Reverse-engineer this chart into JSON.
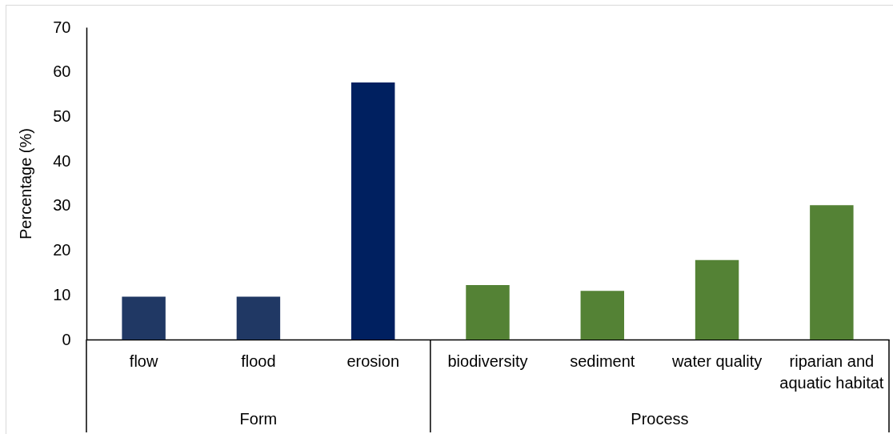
{
  "chart_data": {
    "type": "bar",
    "ylabel": "Percentage (%)",
    "categories": [
      "flow",
      "flood",
      "erosion",
      "biodiversity",
      "sediment",
      "water quality",
      "riparian and aquatic habitat"
    ],
    "series": [
      {
        "colors": [
          "#203864",
          "#203864",
          "#002060",
          null,
          null,
          null,
          null
        ],
        "values": [
          9.6,
          9.6,
          57.6,
          null,
          null,
          null,
          null
        ]
      },
      {
        "color": "#548235",
        "values": [
          null,
          null,
          null,
          12.2,
          10.9,
          17.8,
          30.1
        ]
      }
    ],
    "annotations": [
      "Form",
      "Process"
    ],
    "ylim": [
      0,
      70
    ],
    "yticks": [
      0,
      10,
      20,
      30,
      40,
      50,
      60,
      70
    ]
  }
}
